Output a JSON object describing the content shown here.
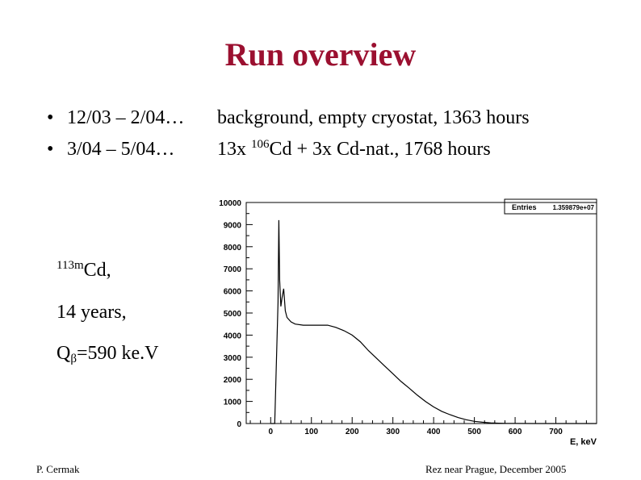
{
  "slide": {
    "title": "Run overview",
    "bullets": [
      {
        "bullet": "•",
        "period": "12/03 – 2/04…",
        "description": "background, empty cryostat, 1363 hours"
      },
      {
        "bullet": "•",
        "period": "3/04 – 5/04…",
        "description_prefix": "13x ",
        "isotope_mass": "106",
        "description_suffix": "Cd + 3x Cd-nat., 1768 hours"
      }
    ],
    "side_notes": {
      "isotope_mass": "113m",
      "isotope_text": "Cd,",
      "half_life": "14 years,",
      "q_prefix": "Q",
      "q_sub": "β",
      "q_value": "=590 ke.V"
    },
    "footer_left": "P. Cermak",
    "footer_right": "Rez near Prague, December 2005"
  },
  "chart_data": {
    "type": "line",
    "stats_box": {
      "label": "Entries",
      "value": "1.359879e+07"
    },
    "xlabel": "E, keV",
    "ylabel": "",
    "xlim": [
      -60,
      800
    ],
    "ylim": [
      0,
      10000
    ],
    "x_ticks": [
      0,
      100,
      200,
      300,
      400,
      500,
      600,
      700
    ],
    "y_ticks": [
      0,
      1000,
      2000,
      3000,
      4000,
      5000,
      6000,
      7000,
      8000,
      9000,
      10000
    ],
    "series": [
      {
        "x": [
          0,
          10,
          18,
          20,
          22,
          25,
          28,
          32,
          36,
          40,
          50,
          60,
          80,
          100,
          120,
          140,
          160,
          180,
          200,
          220,
          240,
          260,
          280,
          300,
          320,
          340,
          360,
          380,
          400,
          420,
          440,
          460,
          480,
          500,
          520,
          540,
          560,
          580,
          600,
          650,
          700,
          800
        ],
        "y": [
          0,
          0,
          5500,
          9200,
          6500,
          5300,
          5700,
          6100,
          5100,
          4800,
          4600,
          4500,
          4450,
          4450,
          4450,
          4450,
          4350,
          4200,
          4000,
          3700,
          3300,
          2950,
          2600,
          2250,
          1900,
          1600,
          1280,
          1000,
          750,
          550,
          400,
          270,
          170,
          100,
          60,
          30,
          15,
          8,
          4,
          1,
          0,
          0
        ]
      }
    ],
    "colors": {
      "line": "#000000",
      "title": "#9b1030",
      "frame": "#000000"
    }
  }
}
